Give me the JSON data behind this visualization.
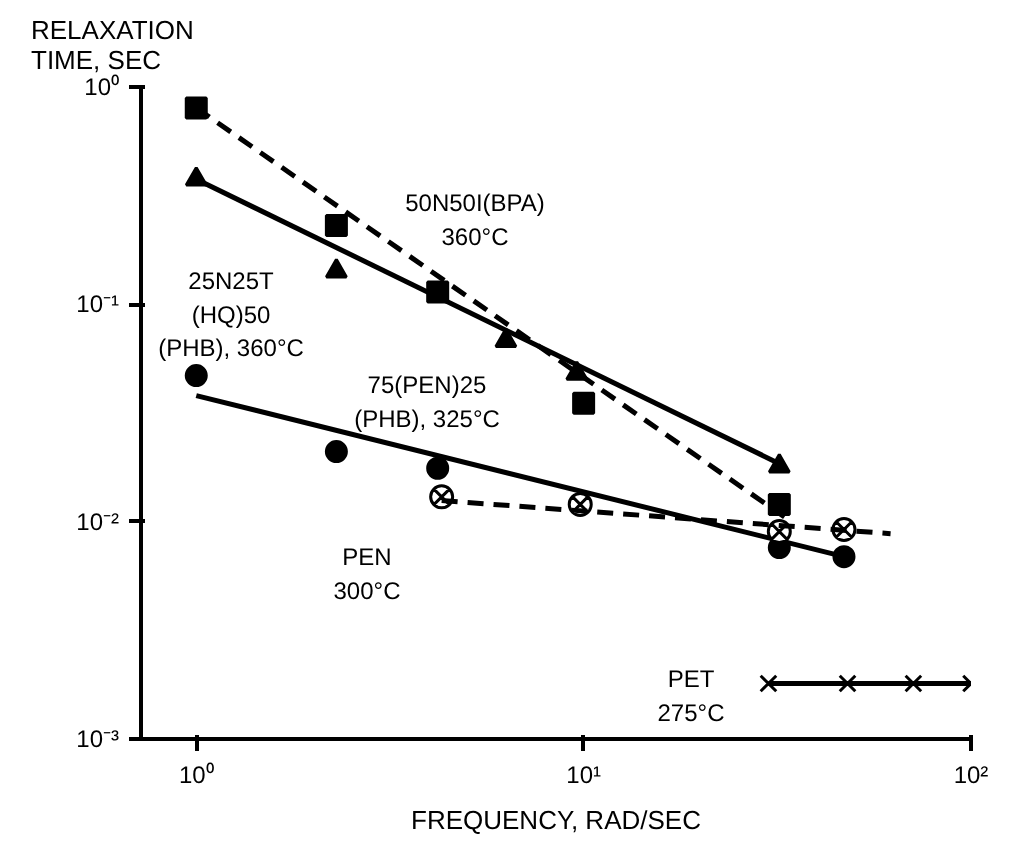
{
  "chart_data": {
    "type": "scatter",
    "xlabel": "FREQUENCY, RAD/SEC",
    "ylabel": "RELAXATION\nTIME, SEC",
    "log": "xy",
    "grid": false,
    "xlim": [
      0.72,
      100
    ],
    "ylim": [
      0.001,
      1.02
    ],
    "xticks": [
      {
        "value": 1,
        "label": "10⁰"
      },
      {
        "value": 10,
        "label": "10¹"
      },
      {
        "value": 100,
        "label": "10²"
      }
    ],
    "yticks": [
      {
        "value": 0.001,
        "label": "10⁻³"
      },
      {
        "value": 0.01,
        "label": "10⁻²"
      },
      {
        "value": 0.1,
        "label": "10⁻¹"
      },
      {
        "value": 1,
        "label": "10⁰"
      }
    ],
    "series": [
      {
        "marker": "square",
        "color": "#000000",
        "x": [
          1,
          2.3,
          4.2,
          10,
          32
        ],
        "values": [
          0.8,
          0.23,
          0.114,
          0.035,
          0.012
        ]
      },
      {
        "type": "line",
        "marker": "none",
        "line_style": "dashed",
        "color": "#000000",
        "x": [
          1,
          33
        ],
        "values": [
          0.8,
          0.0105
        ]
      },
      {
        "marker": "triangle",
        "color": "#000000",
        "x": [
          1,
          2.3,
          6.3,
          9.6,
          32
        ],
        "values": [
          0.376,
          0.142,
          0.068,
          0.048,
          0.018
        ]
      },
      {
        "type": "line",
        "marker": "none",
        "line_style": "solid",
        "color": "#000000",
        "x": [
          1,
          33
        ],
        "values": [
          0.376,
          0.018
        ]
      },
      {
        "marker": "circle",
        "color": "#000000",
        "x": [
          1,
          2.3,
          4.2,
          32,
          47
        ],
        "values": [
          0.047,
          0.021,
          0.0176,
          0.0076,
          0.0069
        ]
      },
      {
        "type": "line",
        "marker": "none",
        "line_style": "solid",
        "color": "#000000",
        "x": [
          1,
          47
        ],
        "values": [
          0.038,
          0.0069
        ]
      },
      {
        "marker": "cross",
        "color": "#000000",
        "x": [
          4.3,
          9.8,
          32,
          47
        ],
        "values": [
          0.013,
          0.012,
          0.009,
          0.0092
        ]
      },
      {
        "type": "line",
        "marker": "none",
        "line_style": "dashed",
        "color": "#000000",
        "x": [
          4.3,
          62
        ],
        "values": [
          0.0125,
          0.0088
        ]
      },
      {
        "type": "line",
        "marker": "cross",
        "line_style": "solid",
        "color": "#000000",
        "x": [
          30,
          48,
          71,
          100
        ],
        "values": [
          0.0018,
          0.0018,
          0.0018,
          0.0018
        ]
      }
    ],
    "annotations": [
      "50N50I(BPA)\n360°C",
      "25N25T\n(HQ)50\n(PHB), 360°C",
      "75(PEN)25\n(PHB), 325°C",
      "PEN\n300°C",
      "PET\n275°C"
    ]
  }
}
